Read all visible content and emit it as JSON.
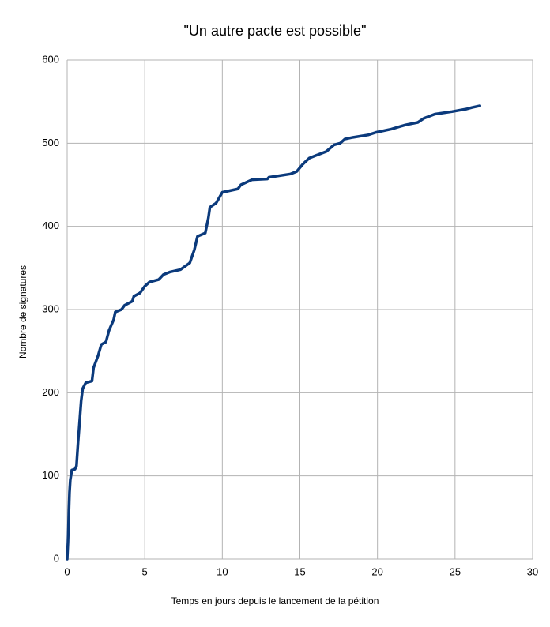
{
  "chart_data": {
    "type": "line",
    "title": "\"Un autre pacte est possible\"",
    "x_label": "Temps en jours depuis le lancement de la pétition",
    "y_label": "Nombre de signatures",
    "x": [
      0,
      0.05,
      0.1,
      0.15,
      0.2,
      0.3,
      0.5,
      0.6,
      0.7,
      0.8,
      0.9,
      1.0,
      1.2,
      1.6,
      1.7,
      2.0,
      2.2,
      2.5,
      2.7,
      3.0,
      3.1,
      3.5,
      3.7,
      4.2,
      4.3,
      4.7,
      5.0,
      5.3,
      5.9,
      6.2,
      6.6,
      7.3,
      7.6,
      7.9,
      8.2,
      8.4,
      8.9,
      9.1,
      9.2,
      9.6,
      10.0,
      11.0,
      11.2,
      11.9,
      12.9,
      13.0,
      14.4,
      14.8,
      15.2,
      15.6,
      16.0,
      16.7,
      17.2,
      17.6,
      17.9,
      18.4,
      19.4,
      19.9,
      20.9,
      21.8,
      22.6,
      23.0,
      23.7,
      24.8,
      25.7,
      26.1,
      26.6
    ],
    "values": [
      0,
      20,
      50,
      80,
      95,
      107,
      108,
      112,
      140,
      165,
      190,
      205,
      212,
      214,
      230,
      245,
      258,
      261,
      275,
      288,
      297,
      300,
      305,
      310,
      316,
      320,
      328,
      333,
      336,
      342,
      345,
      348,
      352,
      356,
      372,
      388,
      392,
      410,
      423,
      428,
      441,
      445,
      450,
      456,
      457,
      459,
      463,
      466,
      475,
      482,
      485,
      490,
      498,
      500,
      505,
      507,
      510,
      513,
      517,
      522,
      525,
      530,
      535,
      538,
      541,
      543,
      545
    ],
    "color": "#0b3a7c",
    "xlim": [
      0,
      30
    ],
    "xticks": [
      0,
      5,
      10,
      15,
      20,
      25,
      30
    ],
    "ylim": [
      0,
      600
    ],
    "yticks": [
      0,
      100,
      200,
      300,
      400,
      500,
      600
    ],
    "grid": true
  }
}
